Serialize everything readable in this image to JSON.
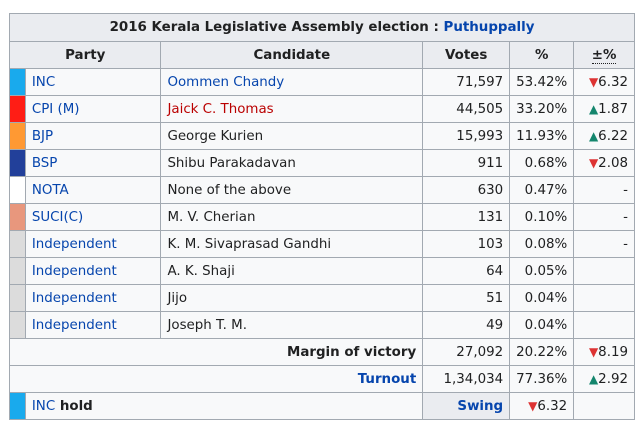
{
  "caption": {
    "prefix": "2016 Kerala Legislative Assembly election : ",
    "link": "Puthuppally"
  },
  "headers": {
    "party": "Party",
    "candidate": "Candidate",
    "votes": "Votes",
    "pct": "%",
    "change": "±%"
  },
  "rows": [
    {
      "color": "#19AAED",
      "party": "INC",
      "candidate": "Oommen Chandy",
      "candidate_red": false,
      "candidate_link": true,
      "votes": "71,597",
      "pct": "53.42%",
      "dir": "down",
      "change": "6.32"
    },
    {
      "color": "#FF1D15",
      "party": "CPI (M)",
      "candidate": "Jaick C. Thomas",
      "candidate_red": true,
      "candidate_link": true,
      "votes": "44,505",
      "pct": "33.20%",
      "dir": "up",
      "change": "1.87"
    },
    {
      "color": "#FF9933",
      "party": "BJP",
      "candidate": "George Kurien",
      "candidate_red": false,
      "candidate_link": false,
      "votes": "15,993",
      "pct": "11.93%",
      "dir": "up",
      "change": "6.22"
    },
    {
      "color": "#22409A",
      "party": "BSP",
      "candidate": "Shibu Parakadavan",
      "candidate_red": false,
      "candidate_link": false,
      "votes": "911",
      "pct": "0.68%",
      "dir": "down",
      "change": "2.08"
    },
    {
      "color": "#FFFFFF",
      "party": "NOTA",
      "candidate": "None of the above",
      "candidate_red": false,
      "candidate_link": false,
      "votes": "630",
      "pct": "0.47%",
      "dir": "",
      "change": "-"
    },
    {
      "color": "#E8977D",
      "party": "SUCI(C)",
      "candidate": "M. V. Cherian",
      "candidate_red": false,
      "candidate_link": false,
      "votes": "131",
      "pct": "0.10%",
      "dir": "",
      "change": "-"
    },
    {
      "color": "#DCDCDC",
      "party": "Independent",
      "candidate": "K. M. Sivaprasad Gandhi",
      "candidate_red": false,
      "candidate_link": false,
      "votes": "103",
      "pct": "0.08%",
      "dir": "",
      "change": "-"
    },
    {
      "color": "#DCDCDC",
      "party": "Independent",
      "candidate": "A. K. Shaji",
      "candidate_red": false,
      "candidate_link": false,
      "votes": "64",
      "pct": "0.05%",
      "dir": "",
      "change": ""
    },
    {
      "color": "#DCDCDC",
      "party": "Independent",
      "candidate": "Jijo",
      "candidate_red": false,
      "candidate_link": false,
      "votes": "51",
      "pct": "0.04%",
      "dir": "",
      "change": ""
    },
    {
      "color": "#DCDCDC",
      "party": "Independent",
      "candidate": "Joseph T. M.",
      "candidate_red": false,
      "candidate_link": false,
      "votes": "49",
      "pct": "0.04%",
      "dir": "",
      "change": ""
    }
  ],
  "margin": {
    "label": "Margin of victory",
    "votes": "27,092",
    "pct": "20.22%",
    "dir": "down",
    "change": "8.19"
  },
  "turnout": {
    "label": "Turnout",
    "votes": "1,34,034",
    "pct": "77.36%",
    "dir": "up",
    "change": "2.92"
  },
  "hold": {
    "color": "#19AAED",
    "party": "INC",
    "word": " hold",
    "swing_label": "Swing",
    "dir": "down",
    "change": "6.32"
  },
  "glyphs": {
    "down": "▼",
    "up": "▲"
  }
}
